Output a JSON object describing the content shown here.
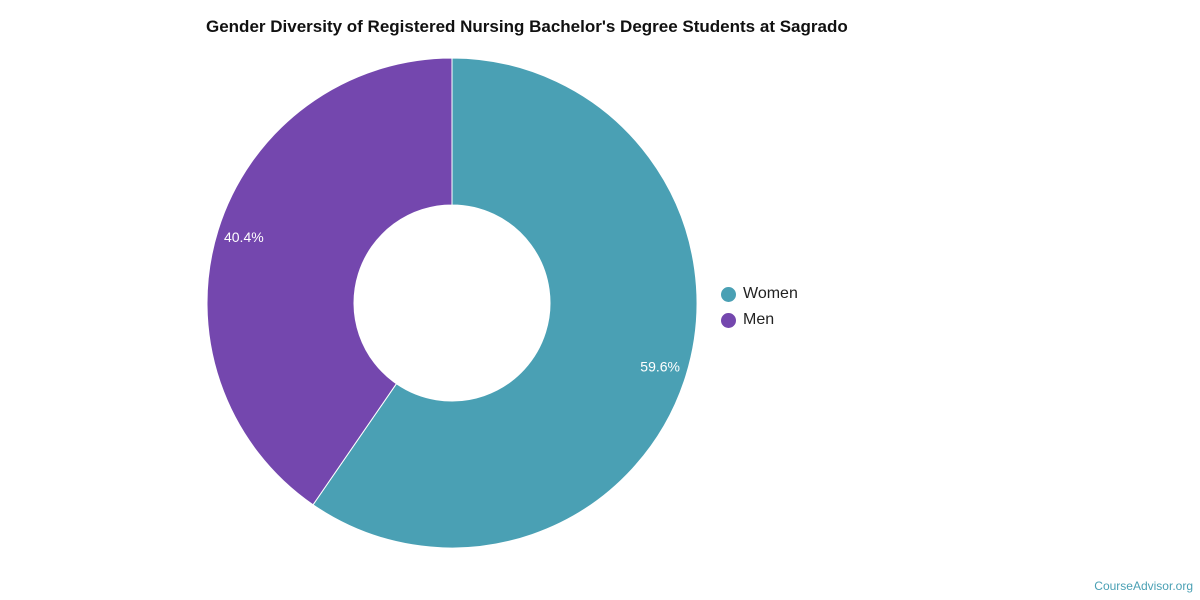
{
  "chart_data": {
    "type": "pie",
    "title": "Gender Diversity of Registered Nursing Bachelor's Degree Students at Sagrado",
    "donut": true,
    "slices": [
      {
        "label": "Women",
        "value": 59.6,
        "display": "59.6%",
        "color": "#4aa0b4"
      },
      {
        "label": "Men",
        "value": 40.4,
        "display": "40.4%",
        "color": "#7447ae"
      }
    ],
    "legend_position": "right"
  },
  "watermark": "CourseAdvisor.org"
}
